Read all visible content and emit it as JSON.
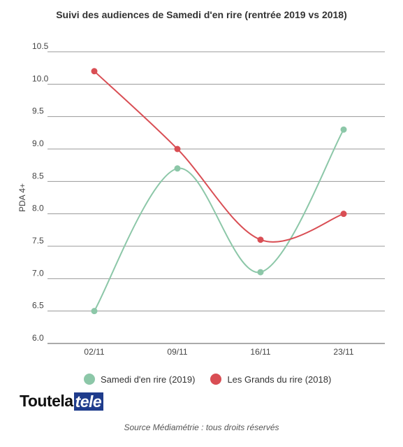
{
  "chart_data": {
    "type": "line",
    "title": "Suivi des audiences de Samedi d'en rire (rentrée 2019 vs 2018)",
    "xlabel": "",
    "ylabel": "PDA 4+",
    "categories": [
      "02/11",
      "09/11",
      "16/11",
      "23/11"
    ],
    "ylim": [
      6.0,
      10.5
    ],
    "yticks": [
      "6.0",
      "6.5",
      "7.0",
      "7.5",
      "8.0",
      "8.5",
      "9.0",
      "9.5",
      "10.0",
      "10.5"
    ],
    "grid": true,
    "legend_position": "bottom",
    "series": [
      {
        "name": "Samedi d'en rire (2019)",
        "color": "#8cc7a8",
        "values": [
          6.5,
          8.7,
          7.1,
          9.3
        ]
      },
      {
        "name": "Les Grands du rire (2018)",
        "color": "#d94e54",
        "values": [
          10.2,
          9.0,
          7.6,
          8.0
        ]
      }
    ]
  },
  "branding": {
    "logo_part1": "Toutela",
    "logo_part2": "tele"
  },
  "source_note": "Source Médiamétrie : tous droits réservés"
}
